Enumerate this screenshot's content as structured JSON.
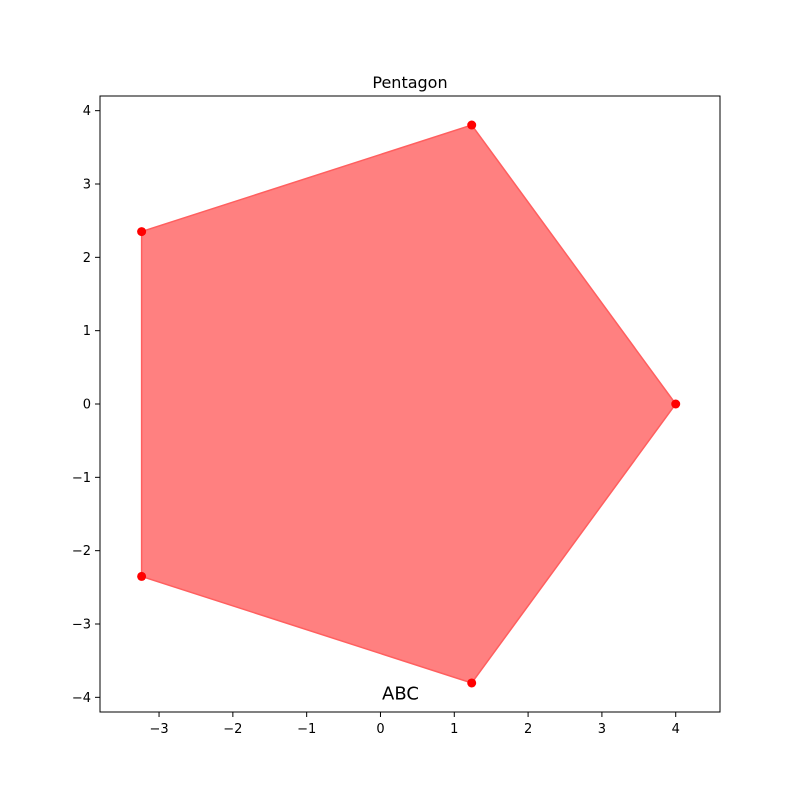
{
  "chart_data": {
    "type": "area",
    "title": "Pentagon",
    "xlabel": "",
    "ylabel": "",
    "xlim": [
      -3.8,
      4.6
    ],
    "ylim": [
      -4.2,
      4.2
    ],
    "xticks": [
      -3,
      -2,
      -1,
      0,
      1,
      2,
      3,
      4
    ],
    "yticks": [
      -4,
      -3,
      -2,
      -1,
      0,
      1,
      2,
      3,
      4
    ],
    "grid": false,
    "legend": "none",
    "series": [
      {
        "points": [
          {
            "x": 4.0,
            "y": 0.0
          },
          {
            "x": 1.236,
            "y": 3.804
          },
          {
            "x": -3.236,
            "y": 2.351
          },
          {
            "x": -3.236,
            "y": -2.351
          },
          {
            "x": 1.236,
            "y": -3.804
          }
        ],
        "fill_color": "#ff8080",
        "edge_color": "#ff5f5f",
        "marker_color": "#ff0000"
      }
    ],
    "annotations": [
      {
        "text": "ABC",
        "x": 0.0,
        "y": -3.95
      }
    ]
  }
}
